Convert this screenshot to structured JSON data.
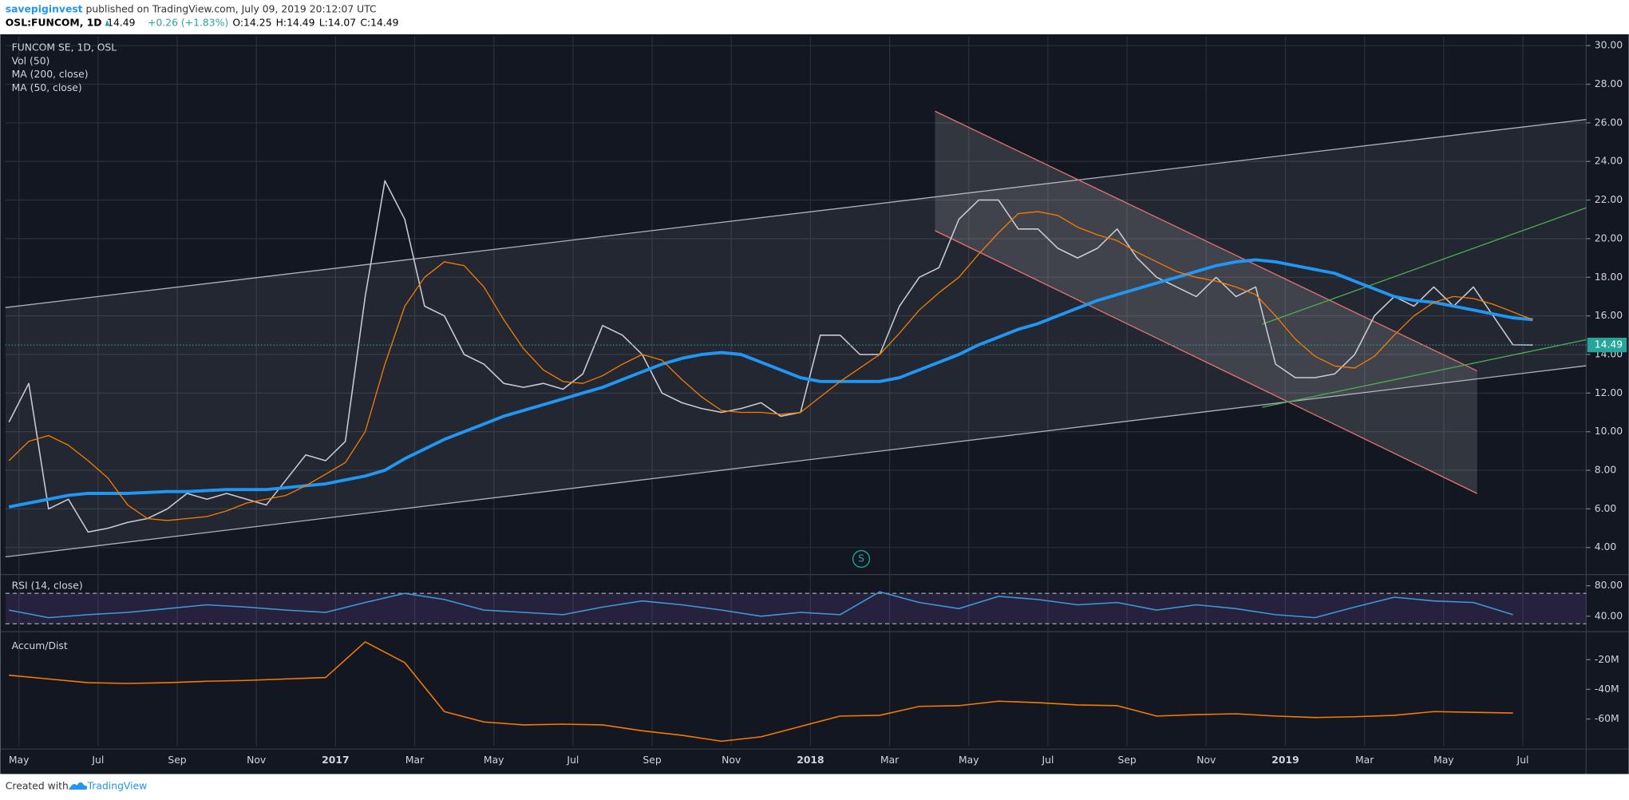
{
  "header": {
    "author": "savepiginvest",
    "published": "published on TradingView.com, July 09, 2019 20:12:07 UTC",
    "symbol": "OSL:FUNCOM, 1D",
    "last": "14.49",
    "change": "+0.26 (+1.83%)",
    "ohlc": [
      "O:14.25",
      "H:14.49",
      "L:14.07",
      "C:14.49"
    ]
  },
  "footer": {
    "text": "Created with",
    "brand": "TradingView"
  },
  "chart_data": [
    {
      "type": "line",
      "title": "FUNCOM SE, 1D, OSL",
      "volume_label": "Vol (50)",
      "marker": "S",
      "x": [
        3.75,
        4.25,
        4.75,
        5.25,
        5.75,
        6.25,
        6.75,
        7.25,
        7.75,
        8.25,
        8.75,
        9.25,
        9.75,
        10.25,
        10.75,
        11.25,
        11.75,
        12.25,
        12.75,
        13.25,
        13.75,
        14.25,
        14.75,
        15.25,
        15.75,
        16.25,
        16.75,
        17.25,
        17.75,
        18.25,
        18.75,
        19.25,
        19.75,
        20.25,
        20.75,
        21.25,
        21.75,
        22.25,
        22.75,
        23.25,
        23.75,
        24.25,
        24.75,
        25.25,
        25.75,
        26.25,
        26.75,
        27.25,
        27.75,
        28.25,
        28.75,
        29.25,
        29.75,
        30.25,
        30.75,
        31.25,
        31.75,
        32.25,
        32.75,
        33.25,
        33.75,
        34.25,
        34.75,
        35.25,
        35.75,
        36.25,
        36.75,
        37.25,
        37.75,
        38.25,
        38.75,
        39.25,
        39.75,
        40.25,
        40.75,
        41.25,
        41.75,
        42.25
      ],
      "values": [
        10.5,
        12.5,
        6,
        6.5,
        4.8,
        5,
        5.3,
        5.5,
        6,
        6.8,
        6.5,
        6.8,
        6.5,
        6.2,
        7.5,
        8.8,
        8.5,
        9.5,
        17,
        23,
        21,
        16.5,
        16,
        14,
        13.5,
        12.5,
        12.3,
        12.5,
        12.2,
        13,
        15.5,
        15,
        14,
        12,
        11.5,
        11.2,
        11,
        11.2,
        11.5,
        10.8,
        11,
        15,
        15,
        14,
        14,
        16.5,
        18,
        18.5,
        21,
        22,
        22,
        20.5,
        20.5,
        19.5,
        19,
        19.5,
        20.5,
        19,
        18,
        17.5,
        17,
        18,
        17,
        17.5,
        13.5,
        12.8,
        12.8,
        13,
        14,
        16,
        17,
        16.5,
        17.5,
        16.5,
        17.5,
        16,
        14.5,
        14.49
      ],
      "color": "#c9cbd1",
      "series": [
        {
          "name": "MA (200, close)",
          "color": "#2196f3",
          "values": [
            6.1,
            6.3,
            6.5,
            6.7,
            6.8,
            6.8,
            6.8,
            6.85,
            6.9,
            6.9,
            6.95,
            7,
            7,
            7,
            7.1,
            7.2,
            7.3,
            7.5,
            7.7,
            8,
            8.6,
            9.1,
            9.6,
            10,
            10.4,
            10.8,
            11.1,
            11.4,
            11.7,
            12,
            12.3,
            12.7,
            13.1,
            13.5,
            13.8,
            14,
            14.1,
            14,
            13.6,
            13.2,
            12.8,
            12.6,
            12.6,
            12.6,
            12.6,
            12.8,
            13.2,
            13.6,
            14,
            14.5,
            14.9,
            15.3,
            15.6,
            16,
            16.4,
            16.8,
            17.1,
            17.4,
            17.7,
            18,
            18.3,
            18.6,
            18.8,
            18.9,
            18.8,
            18.6,
            18.4,
            18.2,
            17.8,
            17.4,
            17,
            16.8,
            16.7,
            16.5,
            16.3,
            16.1,
            15.9,
            15.8
          ]
        },
        {
          "name": "MA (50, close)",
          "color": "#f57c00",
          "values": [
            8.5,
            9.5,
            9.8,
            9.3,
            8.5,
            7.6,
            6.2,
            5.5,
            5.4,
            5.5,
            5.6,
            5.9,
            6.3,
            6.5,
            6.7,
            7.2,
            7.8,
            8.4,
            10,
            13.5,
            16.5,
            18,
            18.8,
            18.6,
            17.5,
            15.8,
            14.3,
            13.2,
            12.6,
            12.5,
            12.9,
            13.5,
            14,
            13.7,
            12.7,
            11.8,
            11.1,
            11,
            11,
            10.9,
            11,
            11.8,
            12.6,
            13.3,
            14,
            15.1,
            16.3,
            17.2,
            18,
            19.2,
            20.3,
            21.3,
            21.4,
            21.2,
            20.6,
            20.2,
            19.9,
            19.3,
            18.8,
            18.3,
            18,
            17.8,
            17.5,
            17.1,
            16,
            14.8,
            13.9,
            13.4,
            13.3,
            13.9,
            15,
            16,
            16.7,
            17,
            16.9,
            16.6,
            16.2,
            15.8
          ]
        }
      ],
      "ylim": [
        2.76,
        30.48
      ],
      "yticks": [
        {
          "value": 4,
          "label": "4.00"
        },
        {
          "value": 6,
          "label": "6.00"
        },
        {
          "value": 8,
          "label": "8.00"
        },
        {
          "value": 10,
          "label": "10.00"
        },
        {
          "value": 12,
          "label": "12.00"
        },
        {
          "value": 14,
          "label": "14.00"
        },
        {
          "value": 16,
          "label": "16.00"
        },
        {
          "value": 18,
          "label": "18.00"
        },
        {
          "value": 20,
          "label": "20.00"
        },
        {
          "value": 22,
          "label": "22.00"
        },
        {
          "value": 24,
          "label": "24.00"
        },
        {
          "value": 26,
          "label": "26.00"
        },
        {
          "value": 28,
          "label": "28.00"
        },
        {
          "value": 30,
          "label": "30.00"
        }
      ],
      "xlim": [
        3.66,
        43.6
      ],
      "xticks": [
        {
          "value": 4,
          "label": "May"
        },
        {
          "value": 6,
          "label": "Jul"
        },
        {
          "value": 8,
          "label": "Sep"
        },
        {
          "value": 10,
          "label": "Nov"
        },
        {
          "value": 12,
          "label": "2017"
        },
        {
          "value": 14,
          "label": "Mar"
        },
        {
          "value": 16,
          "label": "May"
        },
        {
          "value": 18,
          "label": "Jul"
        },
        {
          "value": 20,
          "label": "Sep"
        },
        {
          "value": 22,
          "label": "Nov"
        },
        {
          "value": 24,
          "label": "2018"
        },
        {
          "value": 26,
          "label": "Mar"
        },
        {
          "value": 28,
          "label": "May"
        },
        {
          "value": 30,
          "label": "Jul"
        },
        {
          "value": 32,
          "label": "Sep"
        },
        {
          "value": 34,
          "label": "Nov"
        },
        {
          "value": 36,
          "label": "2019"
        },
        {
          "value": 38,
          "label": "Mar"
        },
        {
          "value": 40,
          "label": "May"
        },
        {
          "value": 42,
          "label": "Jul"
        }
      ],
      "grid": true
    },
    {
      "type": "line",
      "title": "RSI (14, close)",
      "x": [
        3.75,
        4.75,
        5.75,
        6.75,
        7.75,
        8.75,
        9.75,
        10.75,
        11.75,
        12.75,
        13.75,
        14.75,
        15.75,
        16.75,
        17.75,
        18.75,
        19.75,
        20.75,
        21.75,
        22.75,
        23.75,
        24.75,
        25.75,
        26.75,
        27.75,
        28.75,
        29.75,
        30.75,
        31.75,
        32.75,
        33.75,
        34.75,
        35.75,
        36.75,
        37.75,
        38.75,
        39.75,
        40.75,
        41.75
      ],
      "values": [
        48,
        38,
        42,
        45,
        50,
        55,
        52,
        48,
        45,
        58,
        70,
        62,
        48,
        45,
        42,
        52,
        60,
        55,
        48,
        40,
        45,
        42,
        72,
        58,
        50,
        66,
        62,
        55,
        58,
        48,
        55,
        50,
        42,
        38,
        52,
        65,
        60,
        58,
        42
      ],
      "color": "#3d9ad6",
      "ylim": [
        21,
        92
      ],
      "yticks": [
        {
          "value": 80,
          "label": "80.00"
        },
        {
          "value": 40,
          "label": "40.00"
        }
      ],
      "band": [
        30,
        70
      ]
    },
    {
      "type": "line",
      "title": "Accum/Dist",
      "x": [
        3.75,
        4.75,
        5.75,
        6.75,
        7.75,
        8.75,
        9.75,
        10.75,
        11.75,
        12.75,
        13.75,
        14.75,
        15.75,
        16.75,
        17.75,
        18.75,
        19.75,
        20.75,
        21.75,
        22.75,
        23.75,
        24.75,
        25.75,
        26.75,
        27.75,
        28.75,
        29.75,
        30.75,
        31.75,
        32.75,
        33.75,
        34.75,
        35.75,
        36.75,
        37.75,
        38.75,
        39.75,
        40.75,
        41.75
      ],
      "values": [
        -30500000,
        -33000000,
        -35500000,
        -36000000,
        -35500000,
        -34500000,
        -34000000,
        -33000000,
        -32000000,
        -8000000,
        -22000000,
        -55000000,
        -62000000,
        -64000000,
        -63500000,
        -64000000,
        -68000000,
        -71000000,
        -75000000,
        -72000000,
        -65000000,
        -58000000,
        -57500000,
        -51500000,
        -51000000,
        -48000000,
        -49000000,
        -50500000,
        -51000000,
        -58000000,
        -57000000,
        -56500000,
        -58000000,
        -59000000,
        -58500000,
        -57500000,
        -55000000,
        -55500000,
        -56000000
      ],
      "color": "#f57c00",
      "ylim": [
        -78200000,
        -2500000
      ],
      "yticks": [
        {
          "value": -20000000,
          "label": "-20M"
        },
        {
          "value": -40000000,
          "label": "-40M"
        },
        {
          "value": -60000000,
          "label": "-60M"
        }
      ]
    }
  ]
}
